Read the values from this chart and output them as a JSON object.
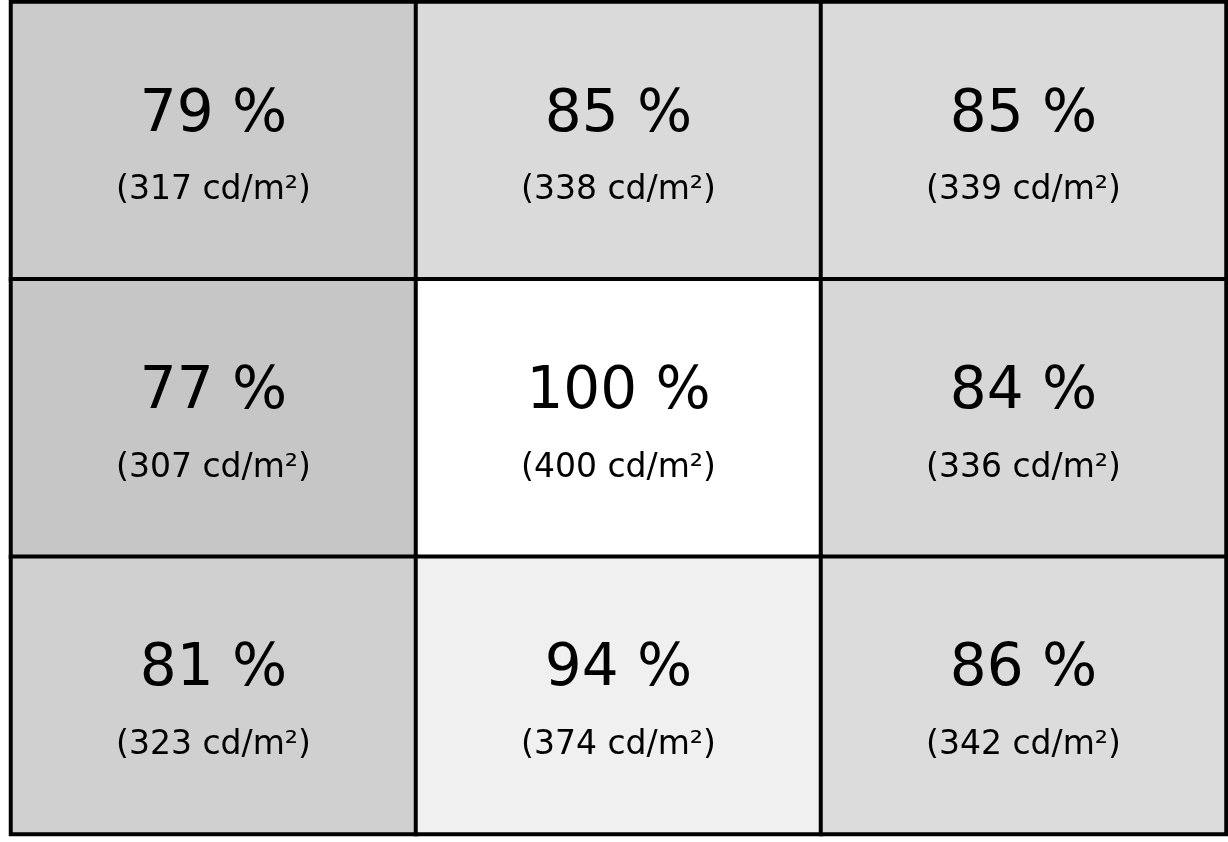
{
  "chart_data": {
    "type": "heatmap",
    "categories": [
      null,
      null,
      null
    ],
    "y_categories": [
      null,
      null,
      null
    ],
    "cells": [
      [
        79,
        85,
        85
      ],
      [
        77,
        100,
        84
      ],
      [
        81,
        94,
        86
      ]
    ],
    "cell_labels": [
      [
        "79 %",
        "85 %",
        "85 %"
      ],
      [
        "77 %",
        "100 %",
        "84 %"
      ],
      [
        "81 %",
        "94 %",
        "86 %"
      ]
    ],
    "annotations": [
      "(317 cd/m²)",
      "(338 cd/m²)",
      "(339 cd/m²)",
      "(307 cd/m²)",
      "(400 cd/m²)",
      "(336 cd/m²)",
      "(323 cd/m²)",
      "(374 cd/m²)",
      "(342 cd/m²)"
    ]
  }
}
